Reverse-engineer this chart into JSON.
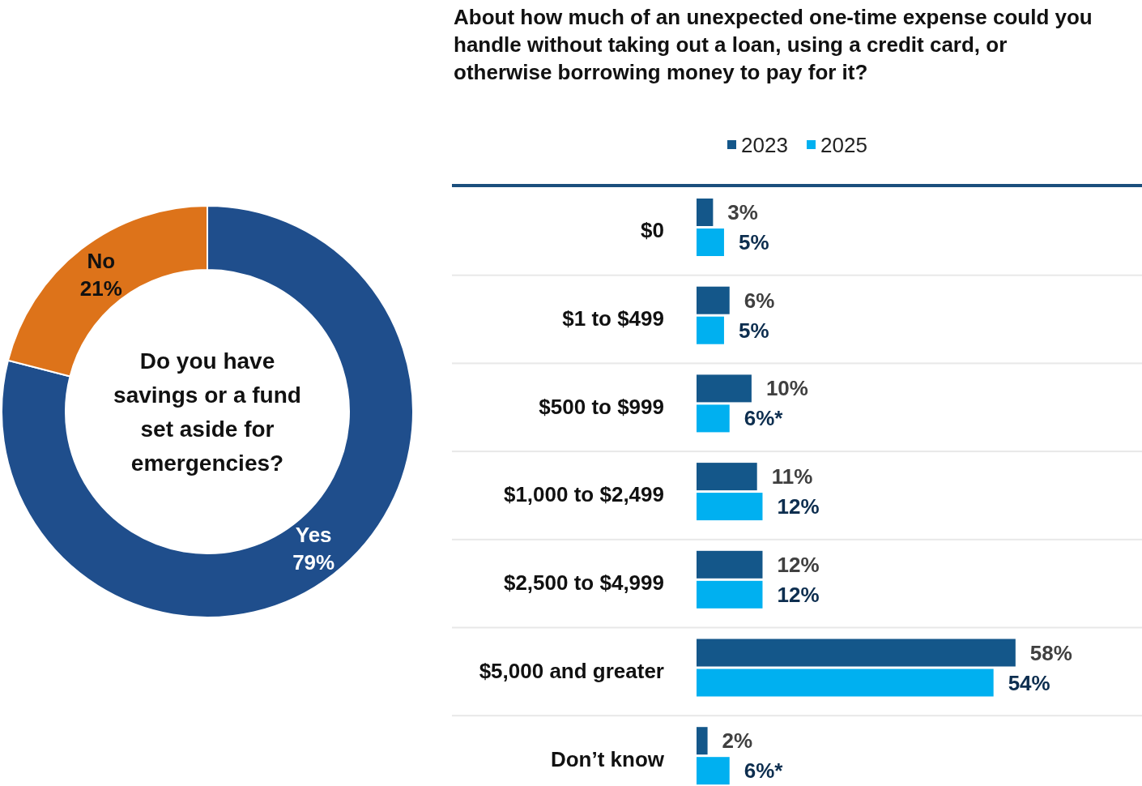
{
  "chart_data": [
    {
      "type": "donut",
      "title": "Do you have savings or a fund set aside for emergencies?",
      "categories": [
        "Yes",
        "No"
      ],
      "values": [
        79,
        21
      ],
      "colors": [
        "#1f4e8c",
        "#dd731a"
      ],
      "value_labels": [
        "79%",
        "21%"
      ]
    },
    {
      "type": "bar",
      "orientation": "horizontal",
      "title": "About how much of an unexpected one-time expense could you handle without taking out a loan, using a credit card, or otherwise borrowing money to pay for it?",
      "categories": [
        "$0",
        "$1 to $499",
        "$500 to $999",
        "$1,000 to $2,499",
        "$2,500 to $4,999",
        "$5,000 and greater",
        "Don’t know"
      ],
      "xlim": [
        0,
        81
      ],
      "tick_labels": "y",
      "legend": "top",
      "series": [
        {
          "name": "2023",
          "color": "#14578a",
          "values": [
            3,
            6,
            10,
            11,
            12,
            58,
            2
          ],
          "value_labels": [
            "3%",
            "6%",
            "10%",
            "11%",
            "12%",
            "58%",
            "2%"
          ]
        },
        {
          "name": "2025",
          "color": "#00b0f0",
          "values": [
            5,
            5,
            6,
            12,
            12,
            54,
            6
          ],
          "value_labels": [
            "5%",
            "5%",
            "6%*",
            "12%",
            "12%",
            "54%",
            "6%*"
          ]
        }
      ]
    }
  ]
}
